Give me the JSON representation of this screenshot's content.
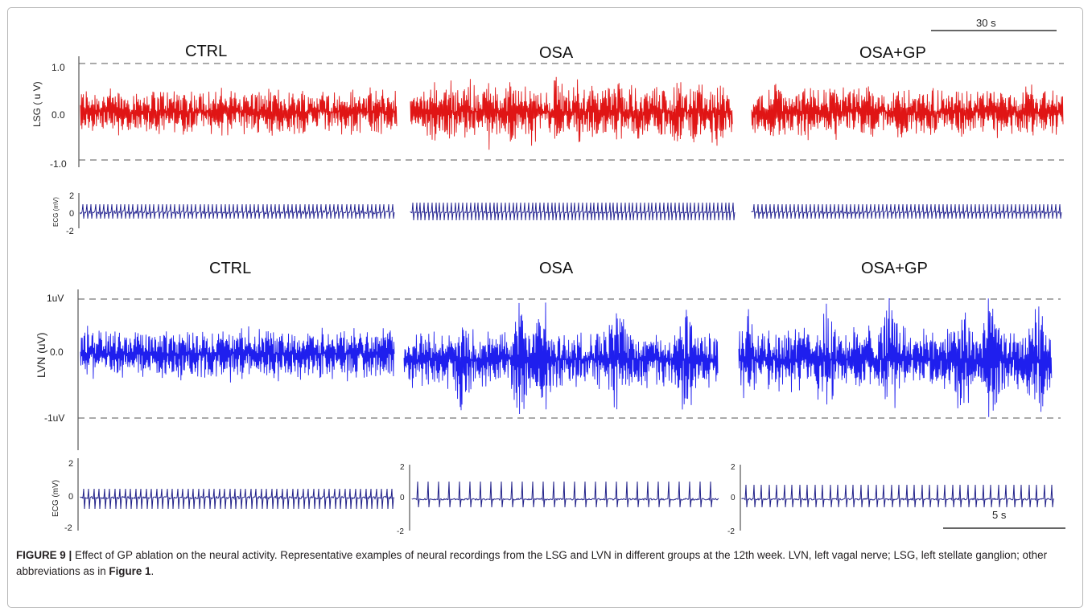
{
  "figure": {
    "top_panel": {
      "titles": [
        "CTRL",
        "OSA",
        "OSA+GP"
      ],
      "ylabel": "LSG ( u V)",
      "yticks": [
        "1.0",
        "0.0",
        "-1.0"
      ],
      "ecg_ylabel": "ECG (mV)",
      "ecg_yticks": [
        "2",
        "0",
        "-2"
      ],
      "scale_bar": "30 s"
    },
    "bottom_panel": {
      "titles": [
        "CTRL",
        "OSA",
        "OSA+GP"
      ],
      "ylabel": "LVN (uV)",
      "yticks": [
        "1uV",
        "0.0",
        "-1uV"
      ],
      "ecg_ylabel": "ECG (mV)",
      "ecg_yticks": [
        "2",
        "0",
        "-2"
      ],
      "scale_bar": "5 s"
    },
    "colors": {
      "lsg_trace": "#e01515",
      "ecg_top": "#1a1a8c",
      "lvn_trace": "#1f1fee",
      "ecg_bottom": "#22228a"
    }
  },
  "caption": {
    "label": "FIGURE 9 |",
    "text": " Effect of GP ablation on the neural activity. Representative examples of neural recordings from the LSG and LVN in different groups at the 12th week. LVN, left vagal nerve; LSG, left stellate ganglion; other abbreviations as in ",
    "ref": "Figure 1",
    "end": "."
  }
}
